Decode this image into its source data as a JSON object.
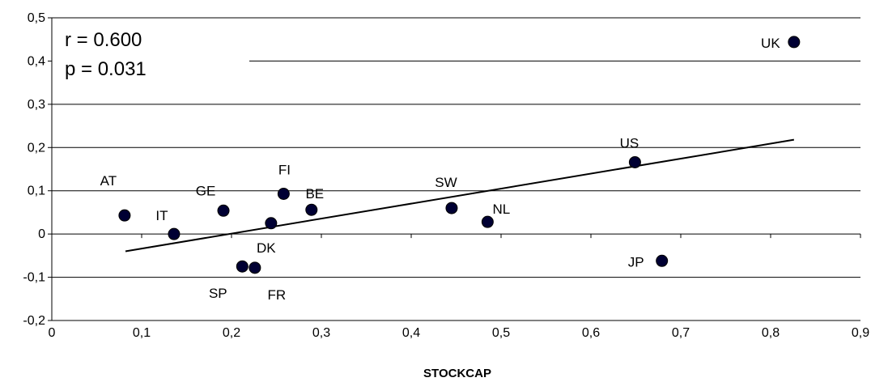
{
  "chart_data": {
    "type": "scatter",
    "xlabel": "STOCKCAP",
    "ylabel": "",
    "xlim": [
      0,
      0.9
    ],
    "ylim": [
      -0.2,
      0.5
    ],
    "x_ticks": [
      0,
      0.1,
      0.2,
      0.3,
      0.4,
      0.5,
      0.6,
      0.7,
      0.8,
      0.9
    ],
    "x_tick_labels": [
      "0",
      "0,1",
      "0,2",
      "0,3",
      "0,4",
      "0,5",
      "0,6",
      "0,7",
      "0,8",
      "0,9"
    ],
    "y_ticks": [
      -0.2,
      -0.1,
      0,
      0.1,
      0.2,
      0.3,
      0.4,
      0.5
    ],
    "y_tick_labels": [
      "-0,2",
      "-0,1",
      "0",
      "0,1",
      "0,2",
      "0,3",
      "0,4",
      "0,5"
    ],
    "grid": "horizontal",
    "points": [
      {
        "label": "AT",
        "x": 0.081,
        "y": 0.043
      },
      {
        "label": "IT",
        "x": 0.136,
        "y": 0.0
      },
      {
        "label": "GE",
        "x": 0.191,
        "y": 0.054
      },
      {
        "label": "SP",
        "x": 0.212,
        "y": -0.075
      },
      {
        "label": "FR",
        "x": 0.226,
        "y": -0.078
      },
      {
        "label": "DK",
        "x": 0.244,
        "y": 0.025
      },
      {
        "label": "FI",
        "x": 0.258,
        "y": 0.093
      },
      {
        "label": "BE",
        "x": 0.289,
        "y": 0.056
      },
      {
        "label": "SW",
        "x": 0.445,
        "y": 0.06
      },
      {
        "label": "NL",
        "x": 0.485,
        "y": 0.028
      },
      {
        "label": "US",
        "x": 0.649,
        "y": 0.166
      },
      {
        "label": "JP",
        "x": 0.679,
        "y": -0.062
      },
      {
        "label": "UK",
        "x": 0.826,
        "y": 0.444
      }
    ],
    "trendline": {
      "x": [
        0.082,
        0.826
      ],
      "y": [
        -0.04,
        0.218
      ]
    },
    "annotations": [
      "r = 0.600",
      "p = 0.031"
    ]
  }
}
